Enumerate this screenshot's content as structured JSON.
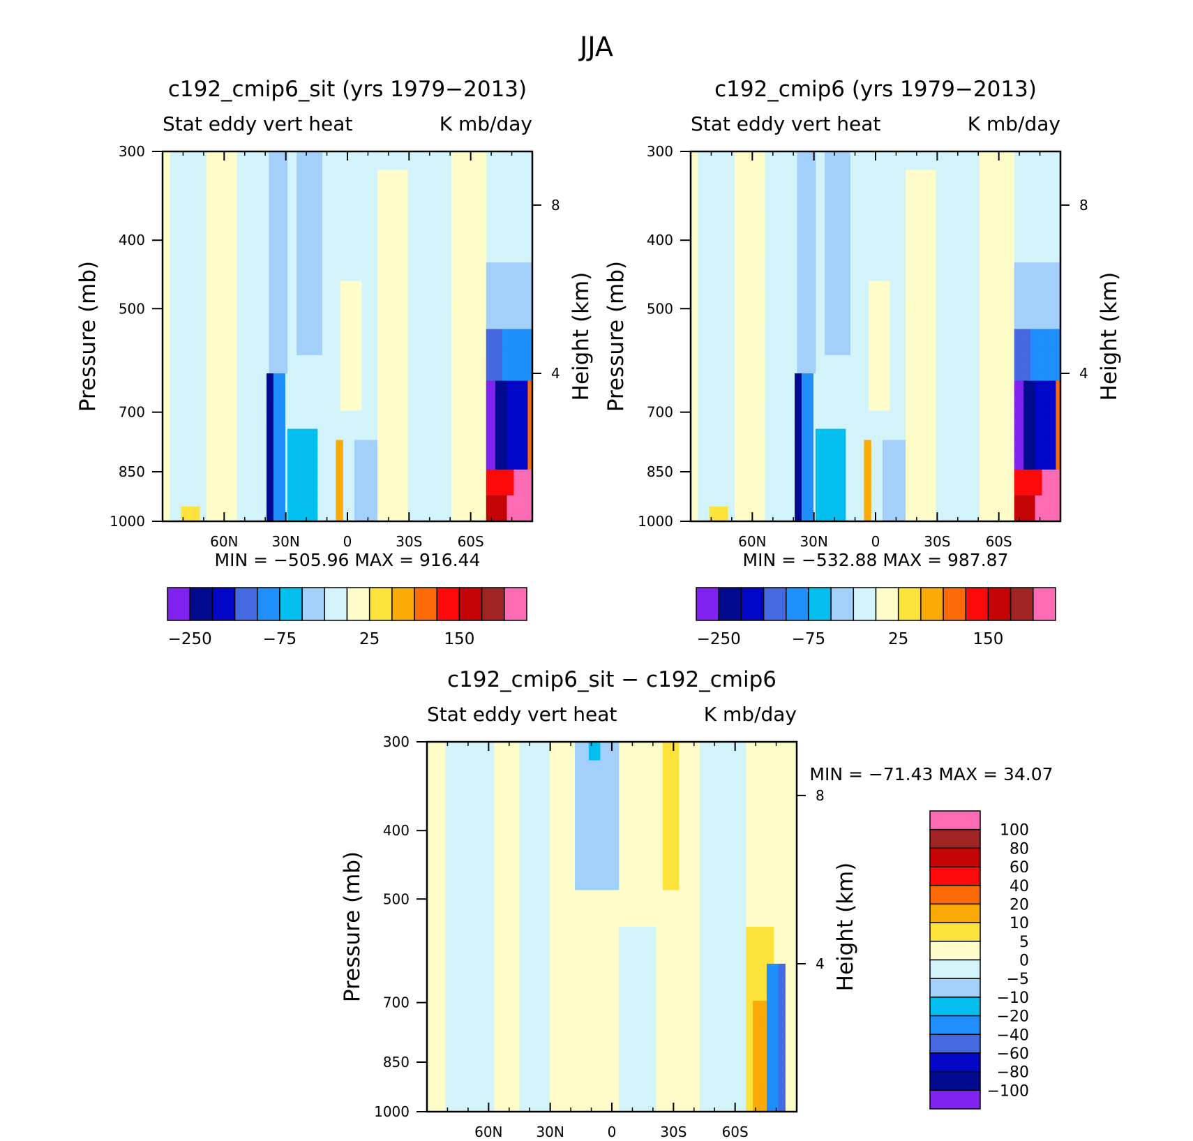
{
  "figure": {
    "title": "JJA"
  },
  "chart_data": [
    {
      "type": "heatmap",
      "title": "c192_cmip6_sit (yrs 1979−2013)",
      "subtitle_left": "Stat eddy vert heat",
      "subtitle_right": "K mb/day",
      "ylabel": "Pressure (mb)",
      "ylabel_right": "Height (km)",
      "x_ticks": [
        "60N",
        "30N",
        "0",
        "30S",
        "60S"
      ],
      "y_ticks": [
        "300",
        "400",
        "500",
        "700",
        "850",
        "1000"
      ],
      "y_right_ticks": [
        "8",
        "4"
      ],
      "min_max": "MIN = −505.96   MAX = 916.44",
      "colorbar_labels": [
        "−250",
        "−75",
        "25",
        "150"
      ],
      "ylim": [
        1000,
        300
      ],
      "xlim": [
        "90N",
        "90S"
      ]
    },
    {
      "type": "heatmap",
      "title": "c192_cmip6 (yrs 1979−2013)",
      "subtitle_left": "Stat eddy vert heat",
      "subtitle_right": "K mb/day",
      "ylabel": "Pressure (mb)",
      "ylabel_right": "Height (km)",
      "x_ticks": [
        "60N",
        "30N",
        "0",
        "30S",
        "60S"
      ],
      "y_ticks": [
        "300",
        "400",
        "500",
        "700",
        "850",
        "1000"
      ],
      "y_right_ticks": [
        "8",
        "4"
      ],
      "min_max": "MIN = −532.88   MAX = 987.87",
      "colorbar_labels": [
        "−250",
        "−75",
        "25",
        "150"
      ],
      "ylim": [
        1000,
        300
      ],
      "xlim": [
        "90N",
        "90S"
      ]
    },
    {
      "type": "heatmap",
      "title": "c192_cmip6_sit − c192_cmip6",
      "subtitle_left": "Stat eddy vert heat",
      "subtitle_right": "K mb/day",
      "ylabel": "Pressure (mb)",
      "ylabel_right": "Height (km)",
      "x_ticks": [
        "60N",
        "30N",
        "0",
        "30S",
        "60S"
      ],
      "y_ticks": [
        "300",
        "400",
        "500",
        "700",
        "850",
        "1000"
      ],
      "y_right_ticks": [
        "8",
        "4"
      ],
      "min_max": "MIN = −71.43   MAX =  34.07",
      "colorbar_labels": [
        "100",
        "80",
        "60",
        "40",
        "20",
        "10",
        "5",
        "0",
        "−5",
        "−10",
        "−20",
        "−40",
        "−60",
        "−80",
        "−100"
      ],
      "ylim": [
        1000,
        300
      ],
      "xlim": [
        "90N",
        "90S"
      ]
    }
  ],
  "colors": {
    "palette": [
      "#8123f0",
      "#020a8f",
      "#0207c8",
      "#4469e0",
      "#1e8ffc",
      "#02bff0",
      "#a3d0fb",
      "#d3f3fb",
      "#fefdc9",
      "#fce33b",
      "#fbab07",
      "#fc6b07",
      "#fc0a0a",
      "#c50505",
      "#a02424",
      "#fc6bb4"
    ]
  }
}
